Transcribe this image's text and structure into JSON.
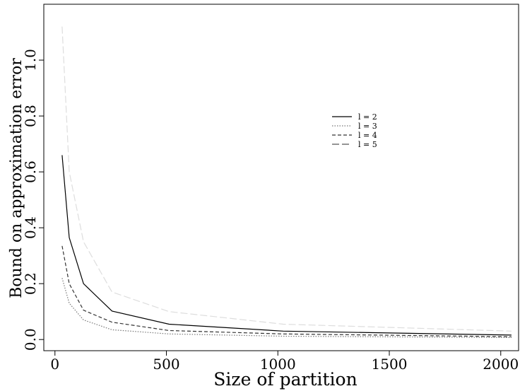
{
  "chart_data": {
    "type": "line",
    "title": "",
    "xlabel": "Size of partition",
    "ylabel": "Bound on approximation error",
    "xlim": [
      -50,
      2080
    ],
    "ylim": [
      -0.04,
      1.2
    ],
    "xticks": [
      0,
      500,
      1000,
      1500,
      2000
    ],
    "xtick_labels": [
      "0",
      "500",
      "1000",
      "1500",
      "2000"
    ],
    "yticks": [
      0.0,
      0.2,
      0.4,
      0.6,
      0.8,
      1.0
    ],
    "ytick_labels": [
      "0.0",
      "0.2",
      "0.4",
      "0.6",
      "0.8",
      "1.0"
    ],
    "grid": false,
    "legend_position": "right-center",
    "x": [
      32,
      64,
      128,
      256,
      512,
      1024,
      2048
    ],
    "series": [
      {
        "name": "l = 2",
        "values": [
          0.66,
          0.365,
          0.2,
          0.102,
          0.055,
          0.03,
          0.016
        ],
        "color": "#000000",
        "dash": "solid"
      },
      {
        "name": "l = 3",
        "values": [
          0.22,
          0.13,
          0.07,
          0.035,
          0.02,
          0.012,
          0.007
        ],
        "color": "#777777",
        "dash": "dotted"
      },
      {
        "name": "l = 4",
        "values": [
          0.335,
          0.2,
          0.105,
          0.062,
          0.032,
          0.02,
          0.01
        ],
        "color": "#333333",
        "dash": "dashed"
      },
      {
        "name": "l = 5",
        "values": [
          1.12,
          0.6,
          0.35,
          0.17,
          0.1,
          0.055,
          0.03
        ],
        "color": "#dddddd",
        "dash": "longdash"
      }
    ]
  }
}
